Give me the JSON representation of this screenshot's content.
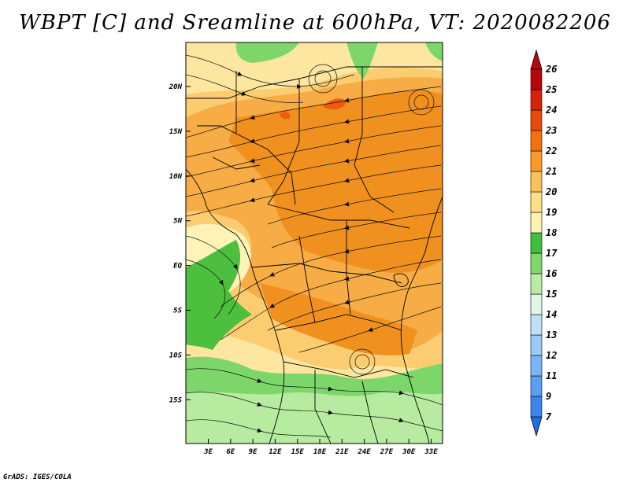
{
  "title": "WBPT [C] and Sreamline at 600hPa, VT: 2020082206",
  "credit": "GrADS: IGES/COLA",
  "map": {
    "lat_ticks": [
      "20N",
      "15N",
      "10N",
      "5N",
      "EQ",
      "5S",
      "10S",
      "15S"
    ],
    "lon_ticks": [
      "3E",
      "6E",
      "9E",
      "12E",
      "15E",
      "18E",
      "21E",
      "24E",
      "27E",
      "30E",
      "33E"
    ]
  },
  "colorbar": {
    "levels": [
      "7",
      "9",
      "11",
      "12",
      "13",
      "14",
      "15",
      "16",
      "17",
      "18",
      "19",
      "20",
      "21",
      "22",
      "23",
      "24",
      "25",
      "26"
    ],
    "colors": [
      "#1e6ee6",
      "#3a86ee",
      "#5a9ff2",
      "#7ab6f5",
      "#9ccaf8",
      "#bfe0fb",
      "#e3f6ec",
      "#b8eca4",
      "#7fd86a",
      "#40be3c",
      "#fff3b2",
      "#fedf86",
      "#fdc15a",
      "#fb9a28",
      "#f5700e",
      "#e84a0c",
      "#d8210a",
      "#b4080a"
    ]
  },
  "field_colors": {
    "orange_dark": "#f0901e",
    "orange": "#f7ac45",
    "light_orange": "#fccd70",
    "yellow": "#fde7a0",
    "pale": "#fff3b8",
    "green_dark": "#4cbf3e",
    "green": "#7dd66a",
    "light_green": "#b6eba0",
    "red": "#ee5a10"
  }
}
